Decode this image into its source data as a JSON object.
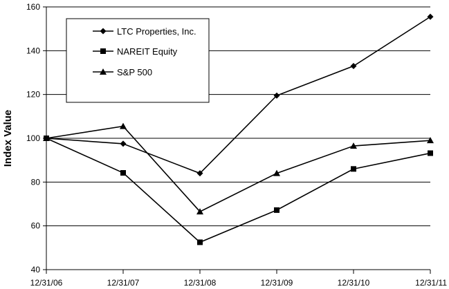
{
  "chart_data": {
    "type": "line",
    "title": "",
    "xlabel": "",
    "ylabel": "Index Value",
    "categories": [
      "12/31/06",
      "12/31/07",
      "12/31/08",
      "12/31/09",
      "12/31/10",
      "12/31/11"
    ],
    "ylim": [
      40,
      160
    ],
    "yticks": [
      40,
      60,
      80,
      100,
      120,
      140,
      160
    ],
    "grid": true,
    "legend_position": "top-left",
    "series": [
      {
        "name": "LTC Properties, Inc.",
        "marker": "diamond",
        "values": [
          100,
          97.5,
          84,
          119.5,
          133,
          155.5
        ]
      },
      {
        "name": "NAREIT Equity",
        "marker": "square",
        "values": [
          100,
          84.2,
          52.5,
          67.2,
          86,
          93.2
        ]
      },
      {
        "name": "S&P 500",
        "marker": "triangle",
        "values": [
          100,
          105.5,
          66.5,
          84,
          96.5,
          99
        ]
      }
    ]
  }
}
